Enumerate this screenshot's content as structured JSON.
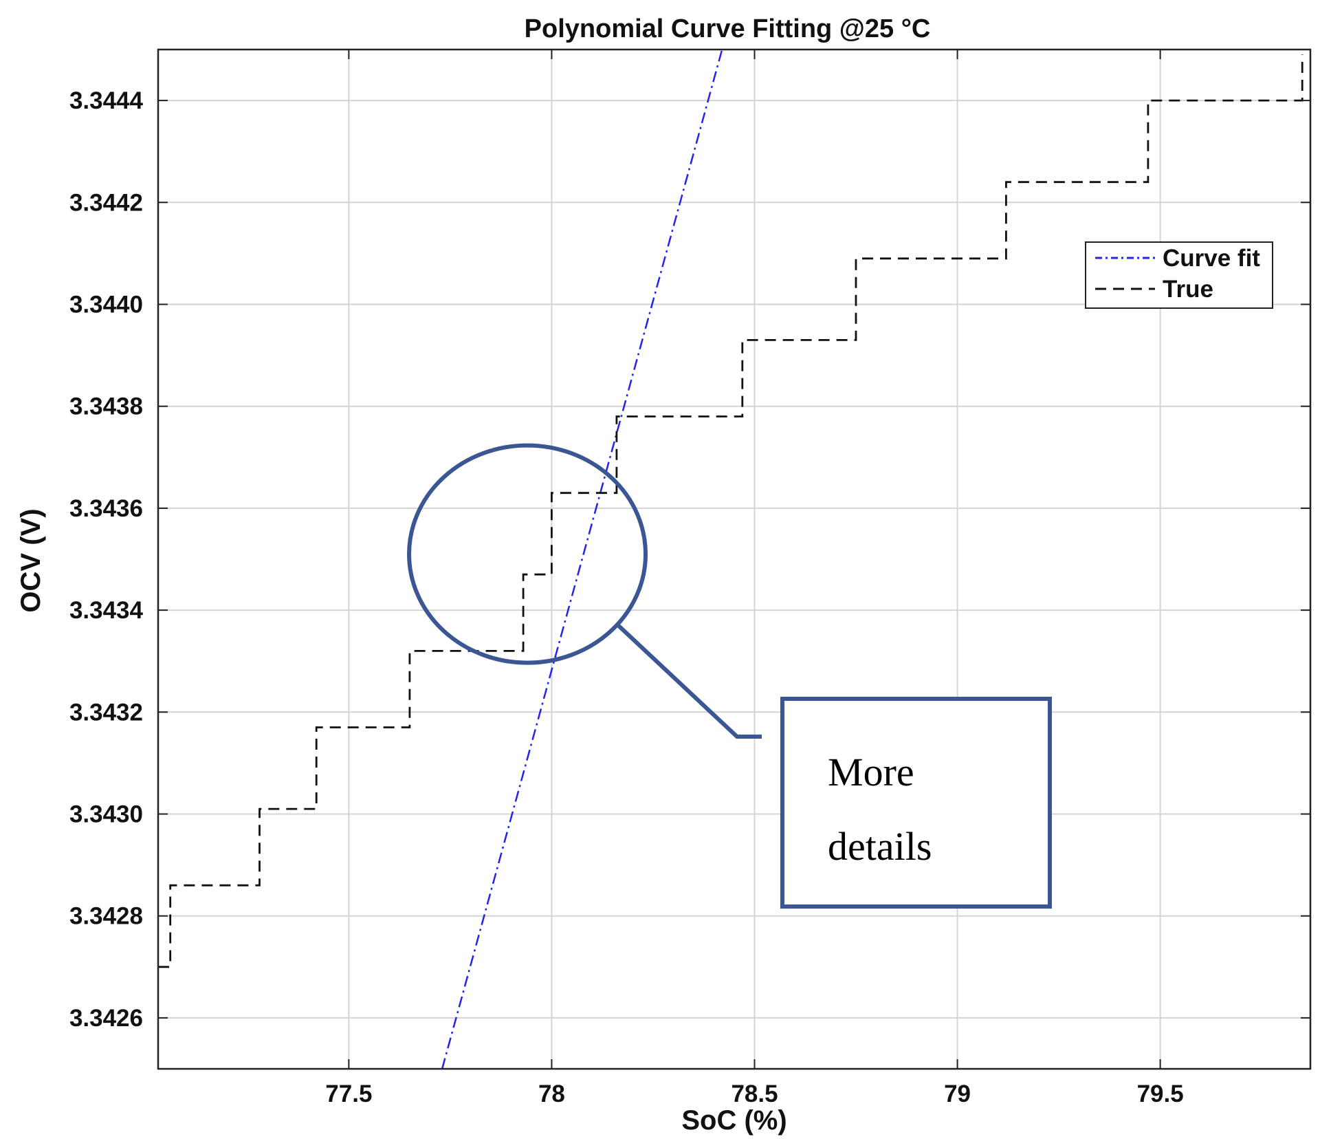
{
  "chart_data": {
    "type": "line",
    "title": "Polynomial Curve Fitting @25 °C",
    "xlabel": "SoC (%)",
    "ylabel": "OCV (V)",
    "xlim": [
      77.03,
      79.87
    ],
    "ylim": [
      3.3425,
      3.3445
    ],
    "x_ticks": [
      77.5,
      78,
      78.5,
      79,
      79.5
    ],
    "x_tick_labels": [
      "77.5",
      "78",
      "78.5",
      "79",
      "79.5"
    ],
    "y_ticks": [
      3.3426,
      3.3428,
      3.343,
      3.3432,
      3.3434,
      3.3436,
      3.3438,
      3.344,
      3.3442,
      3.3444
    ],
    "y_tick_labels": [
      "3.3426",
      "3.3428",
      "3.3430",
      "3.3432",
      "3.3434",
      "3.3436",
      "3.3438",
      "3.3440",
      "3.3442",
      "3.3444"
    ],
    "grid": true,
    "legend_position": "top-right",
    "series": [
      {
        "name": "Curve fit",
        "style": "dash-dot",
        "color": "#2323ee",
        "x": [
          77.73,
          78.42
        ],
        "y": [
          3.3425,
          3.3445
        ]
      },
      {
        "name": "True",
        "style": "dashed",
        "color": "#111111",
        "x": [
          77.03,
          77.06,
          77.06,
          77.28,
          77.28,
          77.42,
          77.42,
          77.65,
          77.65,
          77.93,
          77.93,
          78.0,
          78.0,
          78.16,
          78.16,
          78.47,
          78.47,
          78.75,
          78.75,
          79.12,
          79.12,
          79.47,
          79.47,
          79.85,
          79.85
        ],
        "y": [
          3.3427,
          3.3427,
          3.34286,
          3.34286,
          3.34301,
          3.34301,
          3.34317,
          3.34317,
          3.34332,
          3.34332,
          3.34347,
          3.34347,
          3.34363,
          3.34363,
          3.34378,
          3.34378,
          3.34393,
          3.34393,
          3.34409,
          3.34409,
          3.34424,
          3.34424,
          3.3444,
          3.3444,
          3.34449
        ]
      }
    ],
    "annotation": {
      "text_lines": [
        "More",
        "details"
      ],
      "circle_center": [
        77.94,
        3.34351
      ],
      "color": "#3a5794"
    }
  }
}
